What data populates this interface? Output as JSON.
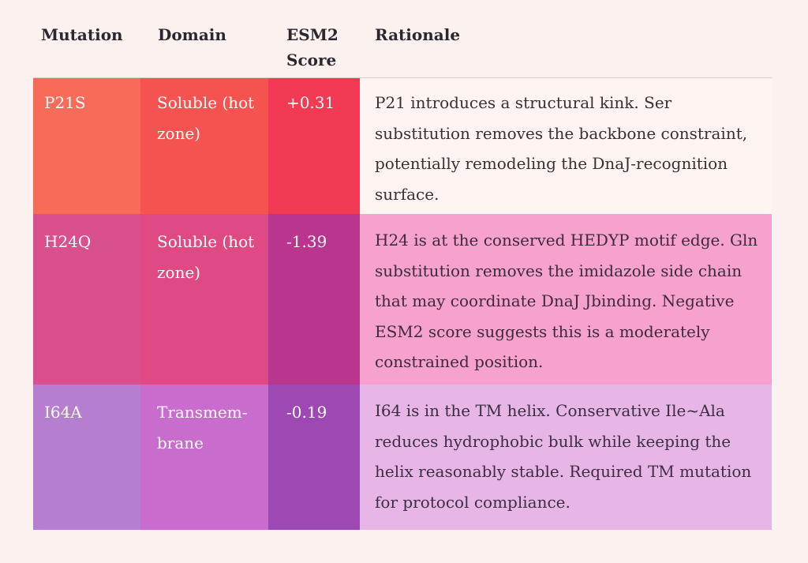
{
  "headers": {
    "mutation": "Mutation",
    "domain": "Domain",
    "score": "ESM2 Score",
    "rationale": "Rationale"
  },
  "rows": [
    {
      "mutation": "P21S",
      "domain": "Soluble (hot zone)",
      "score": "+0.31",
      "rationale": "P21 introduces a structural kink. Ser substitution removes the backbone constraint, potentially remodeling the DnaJ-recognition surface.",
      "colors": {
        "mutation": "#f86b59",
        "domain": "#f5534f",
        "score": "#f23a55",
        "rationale": "#fdf5f1"
      }
    },
    {
      "mutation": "H24Q",
      "domain": "Soluble (hot zone)",
      "score": "-1.39",
      "rationale": "H24 is at the conserved HEDYP motif edge. Gln substitution removes the imidazole side chain that may coordinate DnaJ Jbinding. Negative ESM2 score suggests this is a moderately constrained position.",
      "colors": {
        "mutation": "#da4f8e",
        "domain": "#df4a84",
        "score": "#b8368e",
        "rationale": "#f7a1cf"
      }
    },
    {
      "mutation": "I64A",
      "domain": "Transmem-brane",
      "score": "-0.19",
      "rationale": "I64 is in the TM helix. Conservative Ile~Ala reduces hydrophobic bulk while keeping the helix reasonably stable. Required TM mutation for protocol compliance.",
      "colors": {
        "mutation": "#b57ed0",
        "domain": "#c86dcd",
        "score": "#9e48b4",
        "rationale": "#e7b6e6"
      }
    }
  ]
}
